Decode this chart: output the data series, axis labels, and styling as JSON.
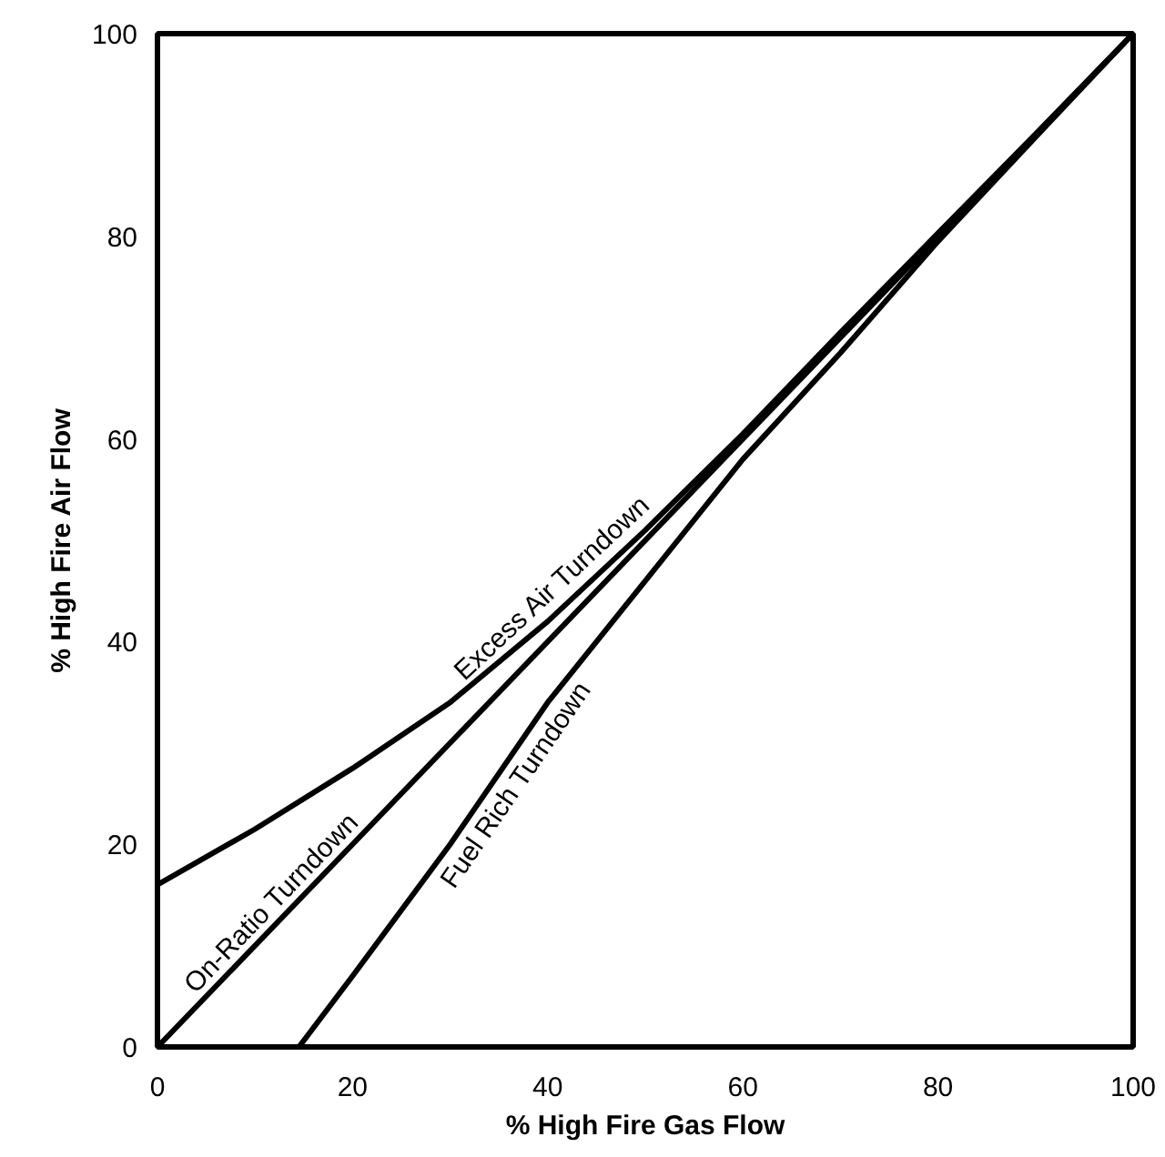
{
  "chart_data": {
    "type": "line",
    "xlabel": "% High Fire Gas Flow",
    "ylabel": "% High Fire Air Flow",
    "xlim": [
      0,
      100
    ],
    "ylim": [
      0,
      100
    ],
    "xticks": [
      0,
      20,
      40,
      60,
      80,
      100
    ],
    "yticks": [
      0,
      20,
      40,
      60,
      80,
      100
    ],
    "grid": false,
    "legend": false,
    "marker": "none",
    "line_style": "solid",
    "series": [
      {
        "name": "Excess Air Turndown",
        "color": "#000000",
        "x": [
          0,
          10,
          20,
          30,
          40,
          50,
          60,
          70,
          80,
          90,
          100
        ],
        "values": [
          16,
          21.5,
          27.5,
          34,
          42,
          51,
          60.5,
          70.5,
          80.3,
          90.1,
          100
        ]
      },
      {
        "name": "On-Ratio Turndown",
        "color": "#000000",
        "x": [
          0,
          100
        ],
        "values": [
          0,
          100
        ]
      },
      {
        "name": "Fuel Rich Turndown",
        "color": "#000000",
        "x": [
          14.5,
          20,
          30,
          40,
          50,
          60,
          70,
          80,
          90,
          100
        ],
        "values": [
          0,
          7,
          20,
          34,
          46,
          58,
          68.5,
          79.5,
          89.8,
          100
        ]
      }
    ]
  }
}
